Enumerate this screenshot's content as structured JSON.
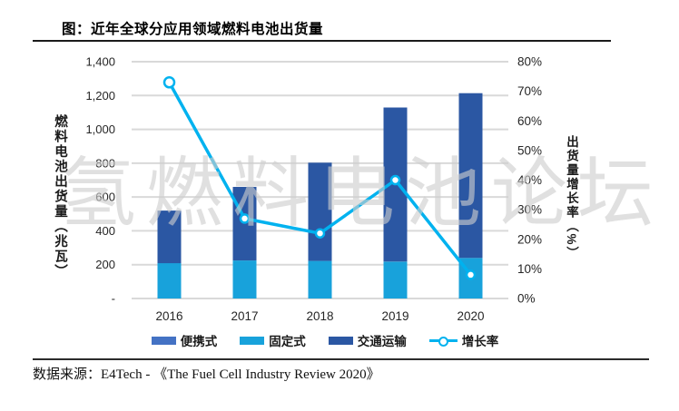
{
  "header": {
    "title": "图：近年全球分应用领域燃料电池出货量"
  },
  "watermark": {
    "text": "氢燃料电池论坛"
  },
  "footer": {
    "source": "数据来源：E4Tech - 《The Fuel Cell Industry Review 2020》"
  },
  "colors": {
    "bar_portable": "#4472C4",
    "bar_stationary": "#18A2DB",
    "bar_transport": "#2B57A3",
    "growth_line": "#00B2EF",
    "gridline": "#D9D9D9",
    "tick_text": "#262626"
  },
  "chart_data": {
    "type": "bar",
    "subtype": "stacked-bar-with-line",
    "categories": [
      "2016",
      "2017",
      "2018",
      "2019",
      "2020"
    ],
    "series": [
      {
        "name": "便携式",
        "type": "bar",
        "axis": "left",
        "color": "#4472C4",
        "values": [
          0,
          0,
          0,
          0,
          0
        ]
      },
      {
        "name": "固定式",
        "type": "bar",
        "axis": "left",
        "color": "#18A2DB",
        "values": [
          209,
          225,
          222,
          218,
          240
        ]
      },
      {
        "name": "交通运输",
        "type": "bar",
        "axis": "left",
        "color": "#2B57A3",
        "values": [
          311,
          435,
          581,
          911,
          974
        ]
      },
      {
        "name": "增长率",
        "type": "line",
        "axis": "right",
        "color": "#00B2EF",
        "values": [
          73,
          27,
          22,
          40,
          8
        ]
      }
    ],
    "bar_totals": [
      520,
      660,
      803,
      1129,
      1214
    ],
    "ylabel_left": "燃料电池出货量（兆瓦）",
    "ylabel_right": "出货量增长率（%）",
    "y_left": {
      "min": 0,
      "max": 1400,
      "tick_values": [
        1400,
        1200,
        1000,
        800,
        600,
        400,
        200,
        0
      ],
      "tick_labels": [
        "1,400",
        "1,200",
        "1,000",
        "800",
        "600",
        "400",
        "200",
        "-"
      ]
    },
    "y_right": {
      "min": 0,
      "max": 80,
      "tick_values": [
        80,
        70,
        60,
        50,
        40,
        30,
        20,
        10,
        0
      ],
      "tick_labels": [
        "80%",
        "70%",
        "60%",
        "50%",
        "40%",
        "30%",
        "20%",
        "10%",
        "0%"
      ]
    },
    "grid": "horizontal",
    "legend_position": "bottom"
  }
}
